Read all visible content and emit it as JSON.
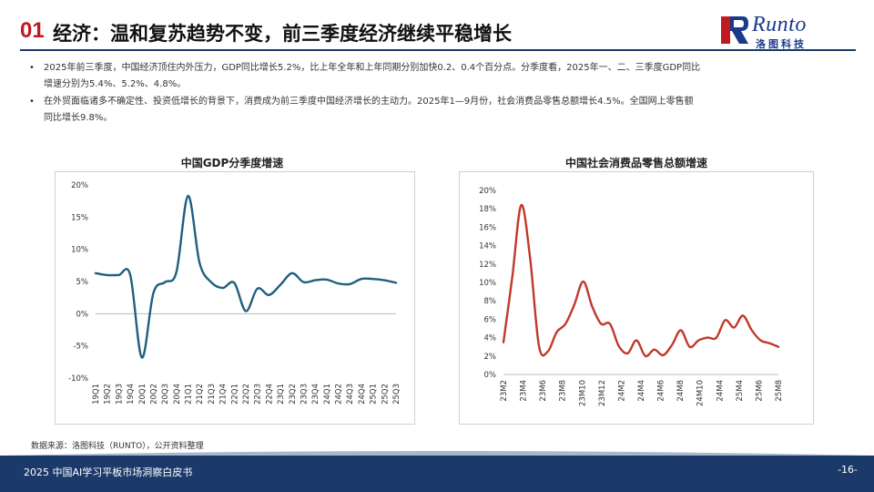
{
  "header": {
    "section_number": "01",
    "title": "经济：温和复苏趋势不变，前三季度经济继续平稳增长"
  },
  "logo": {
    "word": "Runto",
    "subtitle": "洛图科技"
  },
  "bullets": [
    {
      "line1": "2025年前三季度，中国经济顶住内外压力，GDP同比增长5.2%，比上年全年和上年同期分别加快0.2、0.4个百分点。分季度看，2025年一、二、三季度GDP同比",
      "line2": "增速分别为5.4%、5.2%、4.8%。"
    },
    {
      "line1": "在外贸面临诸多不确定性、投资低增长的背景下，消费成为前三季度中国经济增长的主动力。2025年1—9月份，社会消费品零售总额增长4.5%。全国网上零售额",
      "line2": "同比增长9.8%。"
    }
  ],
  "chart_data": [
    {
      "type": "line",
      "title": "中国GDP分季度增速",
      "color": "#1f5f7f",
      "ylim": [
        -10,
        20
      ],
      "yticks": [
        "20%",
        "15%",
        "10%",
        "5%",
        "0%",
        "-5%",
        "-10%"
      ],
      "x": [
        "19Q1",
        "19Q2",
        "19Q3",
        "19Q4",
        "20Q1",
        "20Q2",
        "20Q3",
        "20Q4",
        "21Q1",
        "21Q2",
        "21Q3",
        "21Q4",
        "22Q1",
        "22Q2",
        "22Q3",
        "22Q4",
        "23Q1",
        "23Q2",
        "23Q3",
        "23Q4",
        "24Q1",
        "24Q2",
        "24Q3",
        "24Q4",
        "25Q1",
        "25Q2",
        "25Q3"
      ],
      "values": [
        6.3,
        6.0,
        6.0,
        6.0,
        -6.8,
        3.2,
        4.9,
        6.5,
        18.3,
        7.9,
        4.9,
        4.0,
        4.8,
        0.4,
        3.9,
        2.9,
        4.5,
        6.3,
        4.9,
        5.2,
        5.3,
        4.7,
        4.6,
        5.4,
        5.4,
        5.2,
        4.8
      ]
    },
    {
      "type": "line",
      "title": "中国社会消费品零售总额增速",
      "color": "#c0392b",
      "ylim": [
        0,
        20
      ],
      "yticks": [
        "20%",
        "18%",
        "16%",
        "14%",
        "12%",
        "10%",
        "8%",
        "6%",
        "4%",
        "2%",
        "0%"
      ],
      "xtick_labels": [
        "23M2",
        "23M4",
        "23M6",
        "23M8",
        "23M10",
        "23M12",
        "24M2",
        "24M4",
        "24M6",
        "24M8",
        "24M10",
        "24M4",
        "25M4",
        "25M6",
        "25M8"
      ],
      "x": [
        "23M2",
        "23M3",
        "23M4",
        "23M5",
        "23M6",
        "23M7",
        "23M8",
        "23M9",
        "23M10",
        "23M11",
        "23M12",
        "24M1",
        "24M2",
        "24M3",
        "24M4",
        "24M5",
        "24M6",
        "24M7",
        "24M8",
        "24M9",
        "24M10",
        "24M11",
        "24M12",
        "25M1",
        "25M2",
        "25M3",
        "25M4",
        "25M5",
        "25M6",
        "25M7",
        "25M8",
        "25M9"
      ],
      "values": [
        3.5,
        10.6,
        18.4,
        12.7,
        3.1,
        2.5,
        4.6,
        5.5,
        7.6,
        10.1,
        7.4,
        5.5,
        5.5,
        3.1,
        2.3,
        3.7,
        2.0,
        2.7,
        2.1,
        3.2,
        4.8,
        3.0,
        3.7,
        4.0,
        4.0,
        5.9,
        5.1,
        6.4,
        4.8,
        3.7,
        3.4,
        3.0
      ]
    }
  ],
  "source": "数据来源：洛图科技（RUNTO），公开资料整理",
  "footer": {
    "title": "2025 中国AI学习平板市场洞察白皮书",
    "page": "-16-"
  }
}
